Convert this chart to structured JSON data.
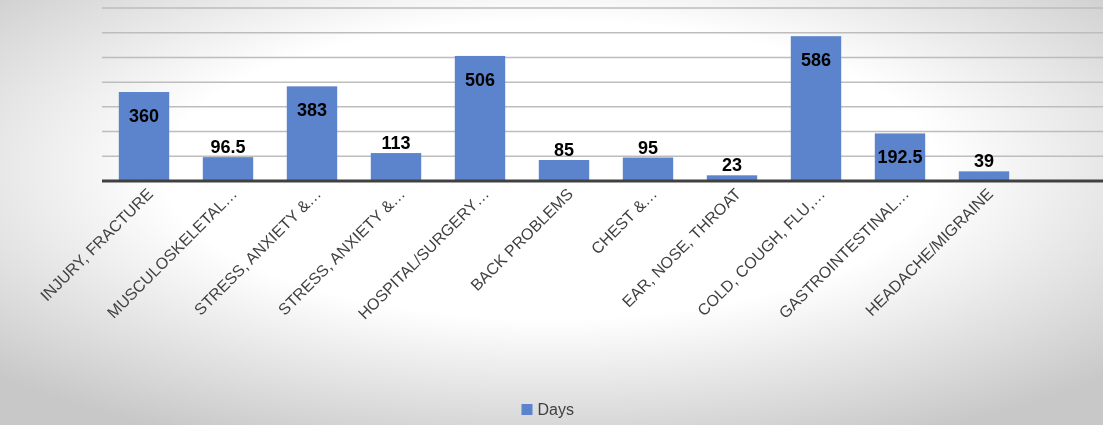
{
  "chart_data": {
    "type": "bar",
    "categories": [
      "INJURY, FRACTURE",
      "MUSCULOSKELETAL…",
      "STRESS, ANXIETY &…",
      "STRESS, ANXIETY &…",
      "HOSPITAL/SURGERY…",
      "BACK PROBLEMS",
      "CHEST &…",
      "EAR, NOSE, THROAT",
      "COLD, COUGH, FLU,…",
      "GASTROINTESTINAL…",
      "HEADACHE/MIGRAINE"
    ],
    "series": [
      {
        "name": "Days",
        "color": "#5b84cc",
        "values": [
          360,
          96.5,
          383,
          113,
          506,
          85,
          95,
          23,
          586,
          192.5,
          39
        ]
      }
    ],
    "ylim": [
      0,
      700
    ],
    "yticks": [
      {
        "value": 0,
        "label": null
      },
      {
        "value": 100,
        "label": null
      },
      {
        "value": 200,
        "label": null
      },
      {
        "value": 300,
        "label": null
      },
      {
        "value": 400,
        "label": null
      },
      {
        "value": 500,
        "label": null
      },
      {
        "value": 600,
        "label": null
      },
      {
        "value": 700,
        "label": null
      }
    ],
    "tick_labels": "x",
    "grid": "y",
    "legend": "bottom",
    "data_labels": true
  }
}
